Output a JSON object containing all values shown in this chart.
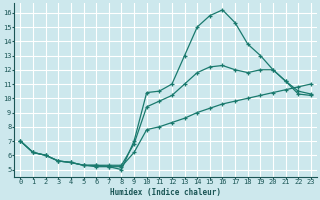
{
  "xlabel": "Humidex (Indice chaleur)",
  "bg_color": "#cde8ed",
  "grid_color": "#ffffff",
  "line_color": "#1a7a6e",
  "xlim": [
    -0.5,
    23.5
  ],
  "ylim": [
    4.5,
    16.7
  ],
  "xticks": [
    0,
    1,
    2,
    3,
    4,
    5,
    6,
    7,
    8,
    9,
    10,
    11,
    12,
    13,
    14,
    15,
    16,
    17,
    18,
    19,
    20,
    21,
    22,
    23
  ],
  "yticks": [
    5,
    6,
    7,
    8,
    9,
    10,
    11,
    12,
    13,
    14,
    15,
    16
  ],
  "line1_x": [
    0,
    1,
    2,
    3,
    4,
    5,
    6,
    7,
    8,
    9,
    10,
    11,
    12,
    13,
    14,
    15,
    16,
    17,
    18,
    19,
    20,
    21,
    22,
    23
  ],
  "line1_y": [
    7.0,
    6.2,
    6.0,
    5.6,
    5.5,
    5.3,
    5.2,
    5.2,
    5.0,
    7.0,
    10.4,
    10.5,
    11.0,
    13.0,
    15.0,
    15.8,
    16.2,
    15.3,
    13.8,
    13.0,
    12.0,
    11.2,
    10.3,
    10.2
  ],
  "line2_x": [
    0,
    1,
    2,
    3,
    4,
    5,
    6,
    7,
    8,
    9,
    10,
    11,
    12,
    13,
    14,
    15,
    16,
    17,
    18,
    19,
    20,
    21,
    22,
    23
  ],
  "line2_y": [
    7.0,
    6.2,
    6.0,
    5.6,
    5.5,
    5.3,
    5.3,
    5.3,
    5.3,
    6.8,
    9.4,
    9.8,
    10.2,
    11.0,
    11.8,
    12.2,
    12.3,
    12.0,
    11.8,
    12.0,
    12.0,
    11.2,
    10.5,
    10.3
  ],
  "line3_x": [
    0,
    1,
    2,
    3,
    4,
    5,
    6,
    7,
    8,
    9,
    10,
    11,
    12,
    13,
    14,
    15,
    16,
    17,
    18,
    19,
    20,
    21,
    22,
    23
  ],
  "line3_y": [
    7.0,
    6.2,
    6.0,
    5.6,
    5.5,
    5.3,
    5.3,
    5.2,
    5.2,
    6.2,
    7.8,
    8.0,
    8.3,
    8.6,
    9.0,
    9.3,
    9.6,
    9.8,
    10.0,
    10.2,
    10.4,
    10.6,
    10.8,
    11.0
  ]
}
